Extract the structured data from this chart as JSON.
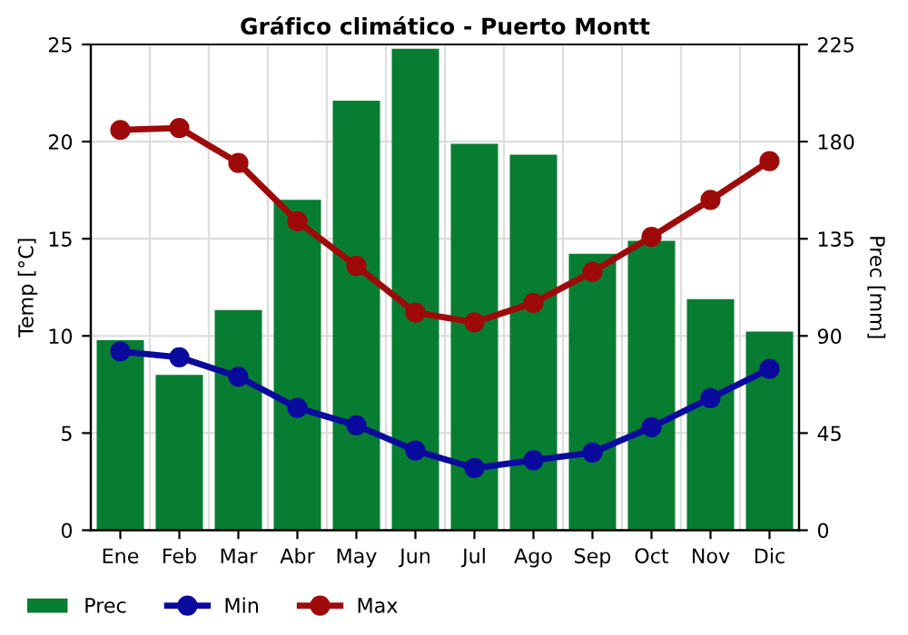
{
  "chart_data": {
    "type": "line",
    "title": "Gráfico climático - Puerto Montt",
    "ylabel": "Temp [°C]",
    "y2label": "Prec [mm]",
    "categories": [
      "Ene",
      "Feb",
      "Mar",
      "Abr",
      "May",
      "Jun",
      "Jul",
      "Ago",
      "Sep",
      "Oct",
      "Nov",
      "Dic"
    ],
    "series": [
      {
        "name": "Prec",
        "type": "bar",
        "axis": "y2",
        "color": "#077d32",
        "values": [
          88,
          72,
          102,
          153,
          199,
          223,
          179,
          174,
          128,
          134,
          107,
          92
        ]
      },
      {
        "name": "Min",
        "color": "#0a0a9e",
        "values": [
          9.2,
          8.9,
          7.9,
          6.3,
          5.4,
          4.1,
          3.2,
          3.6,
          4.0,
          5.3,
          6.8,
          8.3
        ]
      },
      {
        "name": "Max",
        "color": "#9e0a0a",
        "values": [
          20.6,
          20.7,
          18.9,
          15.9,
          13.6,
          11.2,
          10.7,
          11.7,
          13.3,
          15.1,
          17.0,
          19.0
        ]
      }
    ],
    "ylim": [
      0,
      25
    ],
    "yticks": [
      0,
      5,
      10,
      15,
      20,
      25
    ],
    "y2lim": [
      0,
      225
    ],
    "y2ticks": [
      0,
      45,
      90,
      135,
      180,
      225
    ],
    "grid": true,
    "legend": "bottom",
    "marker": "circle",
    "line_style": "solid"
  }
}
